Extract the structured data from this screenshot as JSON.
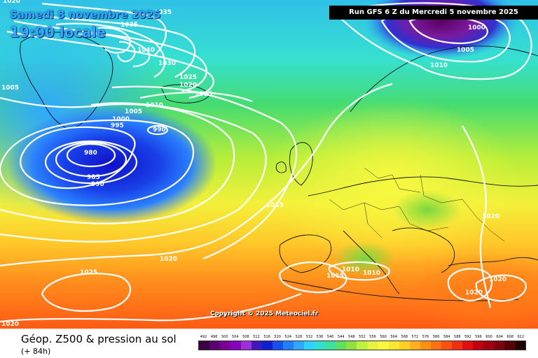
{
  "header": {
    "valid_date": "Samedi 8 novembre 2025",
    "valid_time": "19:00 locale",
    "run_info": "Run GFS 6 Z du Mercredi 5 novembre 2025"
  },
  "map": {
    "pressure_labels": [
      "1020",
      "1035",
      "1035",
      "1040",
      "1030",
      "1025",
      "1020",
      "1015",
      "1010",
      "1005",
      "1000",
      "995",
      "990",
      "980",
      "985",
      "990",
      "1005",
      "1000",
      "1005",
      "1010",
      "1015",
      "1020",
      "1020",
      "1010",
      "1010",
      "1015",
      "1025",
      "1020",
      "1020",
      "1020"
    ],
    "copyright": "Copyright © 2025 Meteociel.fr",
    "colors": {
      "low_core": "#1010d0",
      "sea_blue": "#3aa0ff",
      "cyan": "#36e0e0",
      "green": "#66dd44",
      "yellow": "#f2f23a",
      "orange": "#ff9a1a",
      "red_orange": "#ff5a14"
    }
  },
  "footer": {
    "product_title": "Géop. Z500 & pression au sol",
    "lead_time": "(+ 84h)"
  },
  "scale": {
    "labels": [
      "492",
      "496",
      "500",
      "504",
      "508",
      "512",
      "516",
      "520",
      "524",
      "528",
      "532",
      "536",
      "540",
      "544",
      "548",
      "552",
      "556",
      "560",
      "564",
      "568",
      "572",
      "576",
      "580",
      "584",
      "588",
      "592",
      "596",
      "600",
      "604",
      "608",
      "612"
    ],
    "colors": [
      "#3a0040",
      "#5a0070",
      "#7a0098",
      "#8800c0",
      "#9a30d8",
      "#4018c0",
      "#1020d0",
      "#1850f0",
      "#2080ff",
      "#30a8ff",
      "#30d0ff",
      "#30e0d0",
      "#40e0a0",
      "#60e060",
      "#90e040",
      "#c0f040",
      "#e8f040",
      "#f8f840",
      "#f8e830",
      "#ffd020",
      "#ffb020",
      "#ff9010",
      "#ff7010",
      "#ff5010",
      "#f03010",
      "#e01010",
      "#c00010",
      "#a00010",
      "#800010",
      "#580008",
      "#200000"
    ]
  }
}
